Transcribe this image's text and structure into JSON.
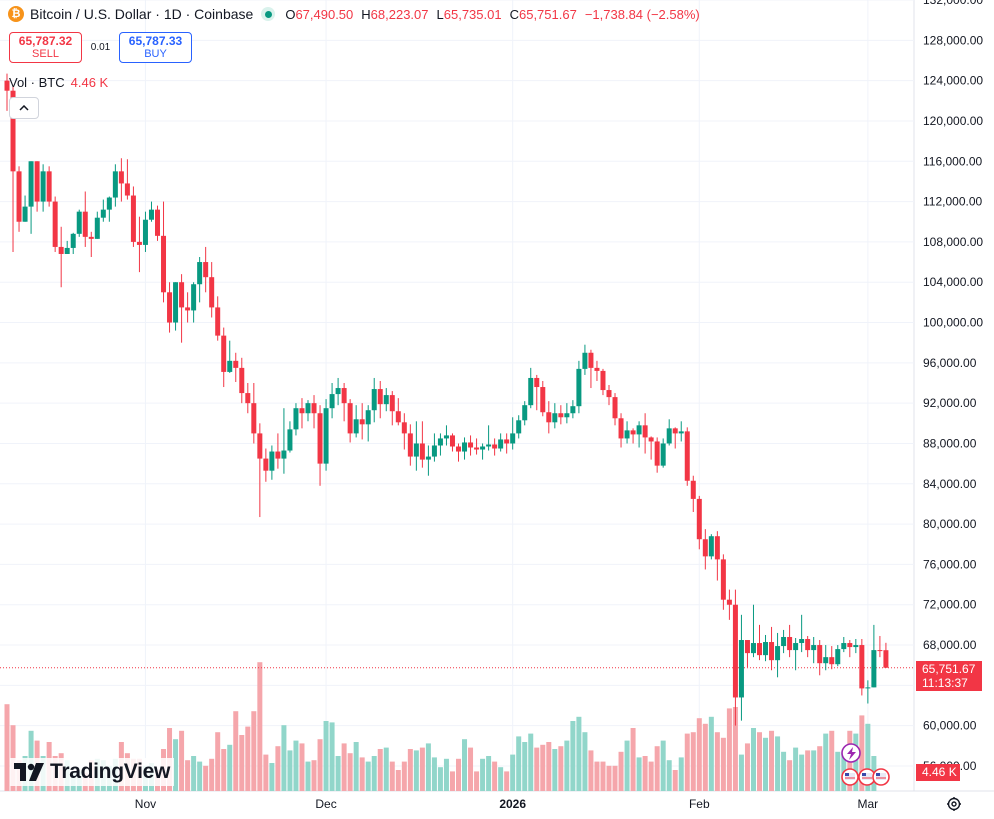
{
  "header": {
    "coin_icon": "bitcoin-icon",
    "symbol_title": "Bitcoin / U.S. Dollar · 1D · Coinbase",
    "ohlc": {
      "o_label": "O",
      "o_value": "67,490.50",
      "h_label": "H",
      "h_value": "68,223.07",
      "l_label": "L",
      "l_value": "65,735.01",
      "c_label": "C",
      "c_value": "65,751.67",
      "change": "−1,738.84 (−2.58%)"
    }
  },
  "trade": {
    "sell_price": "65,787.32",
    "sell_label": "SELL",
    "spread": "0.01",
    "buy_price": "65,787.33",
    "buy_label": "BUY"
  },
  "volume_legend": {
    "label": "Vol · BTC",
    "value": "4.46 K"
  },
  "collapse_icon": "chevron-up-icon",
  "logo_text": "TradingView",
  "current_price_tag": {
    "price": "65,751.67",
    "countdown": "11:13:37"
  },
  "current_volume_tag": "4.46 K",
  "settings_icon": "gear-icon",
  "colors": {
    "up": "#089981",
    "down": "#f23645",
    "vol_up": "#91d6ca",
    "vol_down": "#f5a6ab"
  },
  "chart_data": {
    "type": "candlestick",
    "y_ticks": [
      "132,000.00",
      "128,000.00",
      "124,000.00",
      "120,000.00",
      "116,000.00",
      "112,000.00",
      "108,000.00",
      "104,000.00",
      "100,000.00",
      "96,000.00",
      "92,000.00",
      "88,000.00",
      "84,000.00",
      "80,000.00",
      "76,000.00",
      "72,000.00",
      "68,000.00",
      "64,000.00",
      "60,000.00",
      "56,000.00"
    ],
    "y_tick_values": [
      132000,
      128000,
      124000,
      120000,
      116000,
      112000,
      108000,
      104000,
      100000,
      96000,
      92000,
      88000,
      84000,
      80000,
      76000,
      72000,
      68000,
      64000,
      60000,
      56000
    ],
    "ylim": [
      54000,
      133000
    ],
    "x_labels": [
      {
        "label": "Nov",
        "index": 23,
        "bold": false
      },
      {
        "label": "Dec",
        "index": 53,
        "bold": false
      },
      {
        "label": "2026",
        "index": 84,
        "bold": true
      },
      {
        "label": "Feb",
        "index": 115,
        "bold": false
      },
      {
        "label": "Mar",
        "index": 143,
        "bold": false
      }
    ],
    "last_price": 65751.67,
    "candles": [
      [
        124000,
        123000,
        124700,
        121000
      ],
      [
        123000,
        115000,
        123500,
        107000
      ],
      [
        115000,
        110000,
        115500,
        109000
      ],
      [
        110000,
        111500,
        112600,
        110000
      ],
      [
        111500,
        116000,
        116000,
        108800
      ],
      [
        116000,
        112000,
        116000,
        111000
      ],
      [
        112000,
        115000,
        115700,
        111000
      ],
      [
        115000,
        112000,
        115500,
        111500
      ],
      [
        112000,
        107500,
        112500,
        107000
      ],
      [
        107500,
        106800,
        109500,
        103500
      ],
      [
        106800,
        107400,
        108100,
        106800
      ],
      [
        107400,
        108800,
        108900,
        106800
      ],
      [
        108800,
        111000,
        111200,
        108500
      ],
      [
        111000,
        108500,
        113000,
        107500
      ],
      [
        108500,
        108300,
        109000,
        106500
      ],
      [
        108300,
        110400,
        111000,
        108300
      ],
      [
        110400,
        111200,
        112200,
        110000
      ],
      [
        111200,
        112400,
        112500,
        110000
      ],
      [
        112400,
        115000,
        115700,
        111500
      ],
      [
        115000,
        113800,
        116300,
        112000
      ],
      [
        113800,
        112600,
        116200,
        112200
      ],
      [
        112600,
        108000,
        113500,
        107500
      ],
      [
        108000,
        107700,
        110500,
        105000
      ],
      [
        107700,
        110200,
        111000,
        107000
      ],
      [
        110200,
        111200,
        112000,
        110000
      ],
      [
        111200,
        108600,
        111600,
        108100
      ],
      [
        108600,
        103000,
        112000,
        102000
      ],
      [
        103000,
        100000,
        104000,
        99000
      ],
      [
        100000,
        104000,
        104000,
        99200
      ],
      [
        104000,
        101500,
        104800,
        98000
      ],
      [
        101500,
        101200,
        103000,
        100000
      ],
      [
        101200,
        103800,
        104000,
        100000
      ],
      [
        103800,
        106000,
        106500,
        102000
      ],
      [
        106000,
        104500,
        107500,
        103000
      ],
      [
        104500,
        101500,
        106000,
        100500
      ],
      [
        101500,
        98700,
        102600,
        98200
      ],
      [
        98700,
        95100,
        99500,
        93600
      ],
      [
        95100,
        96200,
        98200,
        95000
      ],
      [
        96200,
        95500,
        97000,
        94100
      ],
      [
        95500,
        93000,
        96500,
        92000
      ],
      [
        93000,
        92000,
        94000,
        91000
      ],
      [
        92000,
        89000,
        94000,
        88000
      ],
      [
        89000,
        86500,
        90000,
        80700
      ],
      [
        86500,
        85300,
        87500,
        84200
      ],
      [
        85300,
        87200,
        87800,
        84400
      ],
      [
        87200,
        86500,
        89000,
        85500
      ],
      [
        86500,
        87300,
        91500,
        85000
      ],
      [
        87300,
        89400,
        90200,
        87100
      ],
      [
        89400,
        91500,
        92000,
        88800
      ],
      [
        91500,
        91000,
        92500,
        89500
      ],
      [
        91000,
        92000,
        92300,
        90200
      ],
      [
        92000,
        91000,
        92800,
        89500
      ],
      [
        91000,
        86000,
        91800,
        83800
      ],
      [
        86000,
        91500,
        92400,
        85300
      ],
      [
        91500,
        92900,
        94000,
        90500
      ],
      [
        92900,
        93500,
        94500,
        91800
      ],
      [
        93500,
        92000,
        94000,
        90200
      ],
      [
        92000,
        89000,
        92400,
        88100
      ],
      [
        89000,
        90400,
        91800,
        88600
      ],
      [
        90400,
        89900,
        92000,
        88400
      ],
      [
        89900,
        91300,
        91800,
        88200
      ],
      [
        91300,
        93400,
        94500,
        90100
      ],
      [
        93400,
        91900,
        94200,
        90500
      ],
      [
        91900,
        92800,
        93500,
        91200
      ],
      [
        92800,
        91200,
        93200,
        89800
      ],
      [
        91200,
        90100,
        92500,
        89800
      ],
      [
        90100,
        89000,
        91000,
        87400
      ],
      [
        89000,
        86700,
        89900,
        85800
      ],
      [
        86700,
        88000,
        90200,
        85300
      ],
      [
        88000,
        86400,
        90200,
        85600
      ],
      [
        86400,
        86700,
        87800,
        84800
      ],
      [
        86700,
        87800,
        89000,
        86200
      ],
      [
        87800,
        88500,
        89000,
        86800
      ],
      [
        88500,
        88800,
        89800,
        87800
      ],
      [
        88800,
        87700,
        89000,
        87200
      ],
      [
        87700,
        87200,
        88000,
        86200
      ],
      [
        87200,
        88100,
        88600,
        86400
      ],
      [
        88100,
        87600,
        88800,
        86800
      ],
      [
        87600,
        87400,
        88500,
        86900
      ],
      [
        87400,
        87700,
        88000,
        86400
      ],
      [
        87700,
        87900,
        89800,
        87300
      ],
      [
        87900,
        87500,
        88500,
        86800
      ],
      [
        87500,
        88400,
        89000,
        87200
      ],
      [
        88400,
        88000,
        89000,
        87000
      ],
      [
        88000,
        89000,
        90600,
        87400
      ],
      [
        89000,
        90300,
        90800,
        88500
      ],
      [
        90300,
        91800,
        92200,
        89800
      ],
      [
        91800,
        94500,
        95500,
        91500
      ],
      [
        94500,
        93600,
        94800,
        91300
      ],
      [
        93600,
        91100,
        94200,
        90700
      ],
      [
        91100,
        90100,
        92200,
        89000
      ],
      [
        90100,
        91000,
        92000,
        89500
      ],
      [
        91000,
        90600,
        91800,
        89900
      ],
      [
        90600,
        91000,
        92000,
        90000
      ],
      [
        91000,
        91700,
        92300,
        90500
      ],
      [
        91700,
        95400,
        96200,
        91000
      ],
      [
        95400,
        97000,
        97800,
        94800
      ],
      [
        97000,
        95500,
        97300,
        93500
      ],
      [
        95500,
        95200,
        96200,
        94200
      ],
      [
        95200,
        93300,
        95400,
        92800
      ],
      [
        93300,
        92600,
        93800,
        91800
      ],
      [
        92600,
        90500,
        93000,
        89800
      ],
      [
        90500,
        88500,
        91000,
        87600
      ],
      [
        88500,
        89300,
        90200,
        88000
      ],
      [
        89300,
        88900,
        89500,
        88000
      ],
      [
        88900,
        89800,
        90200,
        87600
      ],
      [
        89800,
        88600,
        91000,
        87000
      ],
      [
        88600,
        88200,
        88700,
        86400
      ],
      [
        88200,
        85800,
        88600,
        85100
      ],
      [
        85800,
        88000,
        88500,
        85600
      ],
      [
        88000,
        89500,
        90400,
        87800
      ],
      [
        89500,
        89000,
        89600,
        87500
      ],
      [
        89000,
        89200,
        90200,
        88200
      ],
      [
        89200,
        84300,
        89600,
        83800
      ],
      [
        84300,
        82500,
        84800,
        81200
      ],
      [
        82500,
        78500,
        82800,
        77500
      ],
      [
        78500,
        76800,
        79500,
        75500
      ],
      [
        76800,
        78800,
        79000,
        76500
      ],
      [
        78800,
        76500,
        79300,
        74400
      ],
      [
        76500,
        72500,
        77000,
        71500
      ],
      [
        72500,
        72000,
        73500,
        70500
      ],
      [
        72000,
        62800,
        73500,
        60000
      ],
      [
        62800,
        68500,
        71000,
        60500
      ],
      [
        68500,
        67200,
        68500,
        65800
      ],
      [
        67200,
        68200,
        72000,
        66800
      ],
      [
        68200,
        67000,
        70000,
        66500
      ],
      [
        67000,
        68300,
        69000,
        66400
      ],
      [
        68300,
        66500,
        69800,
        65500
      ],
      [
        66500,
        67900,
        69200,
        64800
      ],
      [
        67900,
        68800,
        69500,
        67200
      ],
      [
        68800,
        67500,
        70000,
        66800
      ],
      [
        67500,
        68200,
        68700,
        65500
      ],
      [
        68200,
        68600,
        71000,
        67300
      ],
      [
        68600,
        67500,
        68900,
        66800
      ],
      [
        67500,
        68000,
        68800,
        66200
      ],
      [
        68000,
        66200,
        68500,
        65000
      ],
      [
        66200,
        66800,
        68000,
        65500
      ],
      [
        66800,
        66100,
        67900,
        65600
      ],
      [
        66100,
        67600,
        68000,
        65900
      ],
      [
        67600,
        68200,
        68800,
        67300
      ],
      [
        68200,
        67800,
        68500,
        66800
      ],
      [
        67800,
        68000,
        68600,
        67200
      ],
      [
        68000,
        63700,
        68600,
        63000
      ],
      [
        63700,
        63800,
        64500,
        62200
      ],
      [
        63800,
        67500,
        70000,
        63800
      ],
      [
        67500,
        67490,
        68900,
        66800
      ],
      [
        67490,
        65751,
        68223,
        65735
      ]
    ],
    "volumes": [
      0.62,
      0.47,
      0.22,
      0.25,
      0.43,
      0.36,
      0.25,
      0.35,
      0.25,
      0.27,
      0.22,
      0.14,
      0.14,
      0.13,
      0.22,
      0.23,
      0.22,
      0.18,
      0.23,
      0.35,
      0.27,
      0.23,
      0.23,
      0.18,
      0.2,
      0.15,
      0.3,
      0.45,
      0.37,
      0.43,
      0.22,
      0.25,
      0.21,
      0.18,
      0.23,
      0.42,
      0.3,
      0.33,
      0.57,
      0.4,
      0.46,
      0.57,
      0.92,
      0.26,
      0.2,
      0.32,
      0.47,
      0.29,
      0.36,
      0.34,
      0.21,
      0.22,
      0.37,
      0.5,
      0.49,
      0.25,
      0.34,
      0.27,
      0.35,
      0.24,
      0.21,
      0.25,
      0.3,
      0.31,
      0.21,
      0.15,
      0.21,
      0.3,
      0.29,
      0.31,
      0.34,
      0.24,
      0.17,
      0.23,
      0.14,
      0.23,
      0.37,
      0.31,
      0.14,
      0.23,
      0.25,
      0.21,
      0.17,
      0.14,
      0.26,
      0.39,
      0.35,
      0.41,
      0.31,
      0.33,
      0.35,
      0.3,
      0.32,
      0.36,
      0.5,
      0.53,
      0.42,
      0.29,
      0.21,
      0.21,
      0.18,
      0.18,
      0.28,
      0.36,
      0.45,
      0.24,
      0.25,
      0.21,
      0.32,
      0.36,
      0.22,
      0.15,
      0.24,
      0.41,
      0.42,
      0.52,
      0.48,
      0.53,
      0.42,
      0.38,
      0.59,
      0.6,
      0.26,
      0.34,
      0.45,
      0.42,
      0.38,
      0.43,
      0.39,
      0.28,
      0.22,
      0.31,
      0.26,
      0.29,
      0.29,
      0.32,
      0.41,
      0.43,
      0.28,
      0.27,
      0.43,
      0.41,
      0.54,
      0.48,
      0.25
    ],
    "volume_max": 1.0
  }
}
